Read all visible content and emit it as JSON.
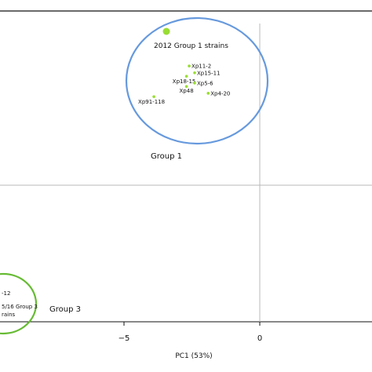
{
  "chart_data": {
    "type": "scatter",
    "xlabel": "PC1 (53%)",
    "ylabel": "",
    "x_ticks": [
      {
        "value": -5,
        "label": "−5"
      },
      {
        "value": 0,
        "label": "0"
      }
    ],
    "legend": [
      {
        "label": "2012 Group 1 strains",
        "color": "#99dd33"
      }
    ],
    "points": [
      {
        "label": "Xp11-2",
        "x": -2.6,
        "y": 3.5
      },
      {
        "label": "Xp15-11",
        "x": -2.4,
        "y": 3.3
      },
      {
        "label": "Xp18-15",
        "x": -2.7,
        "y": 3.2
      },
      {
        "label": "Xp5-6",
        "x": -2.4,
        "y": 3.0
      },
      {
        "label": "Xp48",
        "x": -2.7,
        "y": 2.9
      },
      {
        "label": "Xp4-20",
        "x": -1.9,
        "y": 2.7
      },
      {
        "label": "Xp91-118",
        "x": -3.9,
        "y": 2.6
      }
    ],
    "groups": [
      {
        "label": "Group 1",
        "color": "#6699dd"
      },
      {
        "label": "Group 3",
        "color": "#66bb33"
      }
    ],
    "group3_partial_labels": [
      "-12",
      "5/16 Group 3",
      "rains"
    ],
    "point_color": "#99dd33"
  }
}
